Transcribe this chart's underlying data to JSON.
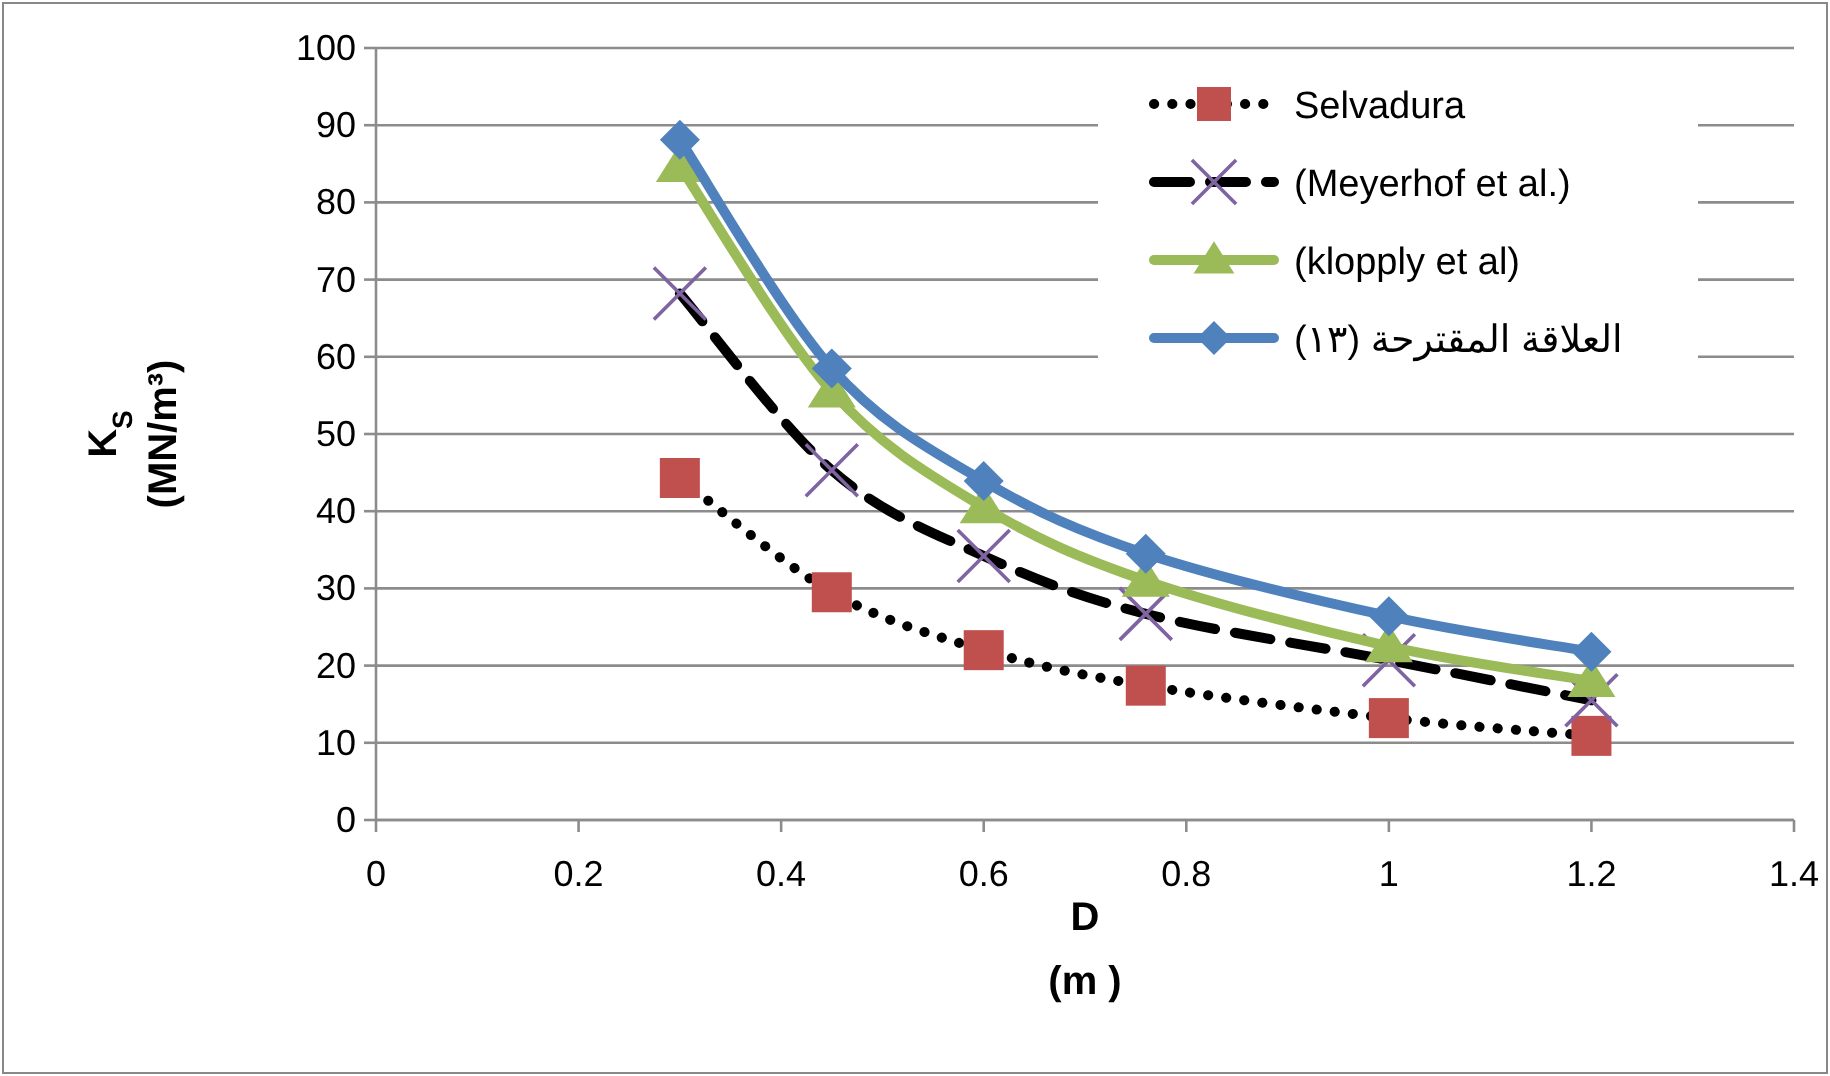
{
  "chart_data": {
    "type": "line",
    "xlabel": "D\n(m )",
    "ylabel": "K$_{S}$\n(MN/m³)",
    "xlim": [
      0,
      1.4
    ],
    "xticks": [
      0,
      0.2,
      0.4,
      0.6,
      0.8,
      1,
      1.2,
      1.4
    ],
    "ylim": [
      0,
      100
    ],
    "yticks": [
      0,
      10,
      20,
      30,
      40,
      50,
      60,
      70,
      80,
      90,
      100
    ],
    "grid": "y",
    "legend": "top right",
    "x": [
      0.3,
      0.45,
      0.6,
      0.76,
      1.0,
      1.2
    ],
    "series": [
      {
        "name": "Selvadura",
        "color": "#000000",
        "colors": [
          "#c0504d",
          "#c0504d",
          "#c0504d",
          "#c0504d",
          "#c0504d",
          "#c0504d"
        ],
        "line_style": "dotted",
        "marker": "square",
        "values": [
          44.3,
          29.5,
          22,
          17.4,
          13.2,
          10.9
        ]
      },
      {
        "name": "(Meyerhof et al.)",
        "color": "#000000",
        "colors": [
          "#8064a2",
          "#8064a2",
          "#8064a2",
          "#8064a2",
          "#8064a2",
          "#8064a2"
        ],
        "line_style": "dashed",
        "marker": "cross",
        "values": [
          68.2,
          45.3,
          34.2,
          26.7,
          20.7,
          15.5
        ]
      },
      {
        "name": "(klopply et al)",
        "color": "#9bbb59",
        "line_style": "solid",
        "marker": "triangle",
        "values": [
          84.7,
          55.5,
          40.5,
          31,
          22.5,
          18
        ]
      },
      {
        "name": "العلاقة المقترحة (١٣)",
        "color": "#4f81bd",
        "line_style": "solid",
        "marker": "diamond",
        "values": [
          88.1,
          58.5,
          43.9,
          34.5,
          26.4,
          21.8
        ]
      }
    ]
  }
}
